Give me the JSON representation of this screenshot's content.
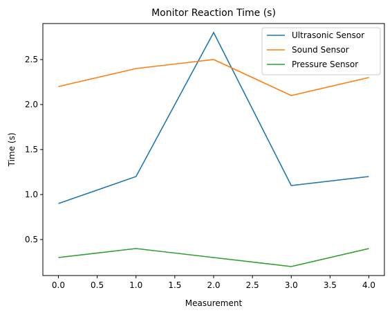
{
  "chart_data": {
    "type": "line",
    "title": "Monitor Reaction Time (s)",
    "xlabel": "Measurement",
    "ylabel": "Time (s)",
    "x": [
      0,
      1,
      2,
      3,
      4
    ],
    "xlim": [
      -0.2,
      4.2
    ],
    "ylim": [
      0.1,
      2.9
    ],
    "xticks": [
      0.0,
      0.5,
      1.0,
      1.5,
      2.0,
      2.5,
      3.0,
      3.5,
      4.0
    ],
    "xtick_labels": [
      "0.0",
      "0.5",
      "1.0",
      "1.5",
      "2.0",
      "2.5",
      "3.0",
      "3.5",
      "4.0"
    ],
    "yticks": [
      0.5,
      1.0,
      1.5,
      2.0,
      2.5
    ],
    "ytick_labels": [
      "0.5",
      "1.0",
      "1.5",
      "2.0",
      "2.5"
    ],
    "grid": false,
    "legend_position": "top-right",
    "series": [
      {
        "name": "Ultrasonic Sensor",
        "color": "#1f77b4",
        "values": [
          0.9,
          1.2,
          2.8,
          1.1,
          1.2
        ]
      },
      {
        "name": "Sound Sensor",
        "color": "#ff7f0e",
        "values": [
          2.2,
          2.4,
          2.5,
          2.1,
          2.3
        ]
      },
      {
        "name": "Pressure Sensor",
        "color": "#2ca02c",
        "values": [
          0.3,
          0.4,
          0.3,
          0.2,
          0.4
        ]
      }
    ]
  }
}
